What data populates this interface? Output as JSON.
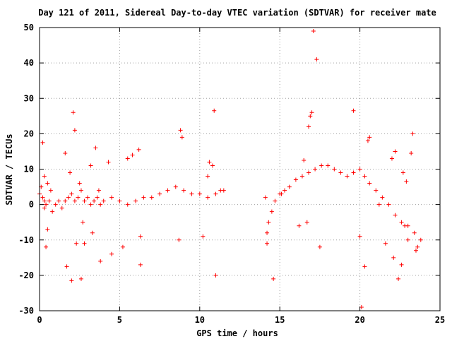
{
  "chart_data": {
    "type": "scatter",
    "title": "Day 121 of 2011, Sidereal Day-to-day VTEC variation (SDTVAR) for receiver mate",
    "xlabel": "GPS time / hours",
    "ylabel": "SDTVAR / TECUs",
    "xlim": [
      0,
      25
    ],
    "ylim": [
      -30,
      50
    ],
    "xticks": [
      "0",
      "5",
      "10",
      "15",
      "20",
      "25"
    ],
    "yticks": [
      "-30",
      "-20",
      "-10",
      "0",
      "10",
      "20",
      "30",
      "40",
      "50"
    ],
    "grid": true,
    "marker": "+",
    "color": "#ff0000",
    "series": [
      {
        "x": [
          0.0,
          0.1,
          0.2,
          0.3,
          0.4,
          0.6,
          0.8,
          1.0,
          1.2,
          1.4,
          1.6,
          1.8,
          2.0,
          2.2,
          2.4,
          2.6,
          2.8,
          3.0,
          3.2,
          3.4,
          3.6,
          3.8,
          4.0,
          4.5,
          5.0,
          5.5,
          6.0,
          6.5,
          7.0,
          7.5,
          8.0,
          8.5,
          9.0,
          9.5,
          10.0,
          10.5,
          11.0,
          11.5,
          14.2,
          14.3,
          14.5,
          14.7,
          15.0,
          15.3,
          15.6,
          16.0,
          16.4,
          16.8,
          17.2,
          17.6,
          18.0,
          18.4,
          18.8,
          19.2,
          19.6,
          20.0,
          20.3,
          20.6,
          21.0,
          21.4,
          21.8,
          22.2,
          22.6,
          23.0,
          23.4,
          23.8,
          0.2,
          0.3,
          0.4,
          0.3,
          0.5,
          0.7,
          1.6,
          1.7,
          1.9,
          2.0,
          2.1,
          2.2,
          2.3,
          2.5,
          2.6,
          2.7,
          3.2,
          3.3,
          3.5,
          3.7,
          3.8,
          4.3,
          4.5,
          5.2,
          5.5,
          6.2,
          6.3,
          6.3,
          8.8,
          8.9,
          10.2,
          10.5,
          10.8,
          10.9,
          11.0,
          11.3,
          14.1,
          14.2,
          14.6,
          15.1,
          16.2,
          16.5,
          16.7,
          16.8,
          16.9,
          17.0,
          17.1,
          17.3,
          17.5,
          19.6,
          20.0,
          20.1,
          20.3,
          20.5,
          20.6,
          21.2,
          21.6,
          22.0,
          22.1,
          22.2,
          22.4,
          22.6,
          22.7,
          22.9,
          23.0,
          23.2,
          23.3,
          23.5,
          0.5,
          2.8,
          5.8,
          8.7,
          10.6,
          22.8,
          23.6
        ],
        "y": [
          3,
          5,
          2,
          -1,
          0,
          1,
          -2,
          0,
          1,
          -1,
          1,
          2,
          3,
          1,
          2,
          4,
          1,
          2,
          0,
          1,
          2,
          0,
          1,
          2,
          1,
          0,
          1,
          2,
          2,
          3,
          4,
          5,
          4,
          3,
          3,
          2,
          3,
          4,
          -8,
          -5,
          -2,
          1,
          3,
          4,
          5,
          7,
          8,
          9,
          10,
          11,
          11,
          10,
          9,
          8,
          9,
          10,
          8,
          6,
          4,
          2,
          0,
          -3,
          -5,
          -6,
          -8,
          -10,
          17.5,
          8,
          -12,
          1,
          -7,
          4,
          14.5,
          -17.5,
          9,
          -21.5,
          26,
          21,
          -11,
          6,
          -21,
          -5,
          11,
          -8,
          16,
          4,
          -16,
          12,
          -14,
          -12,
          13,
          15.5,
          -17,
          -9,
          21,
          19,
          -9,
          8,
          11,
          26.5,
          -20,
          4,
          2,
          -11,
          -21,
          3,
          -6,
          12.5,
          -5,
          22,
          25,
          26,
          49,
          41,
          -12,
          26.5,
          -9,
          -29,
          -17.5,
          18,
          19,
          0,
          -11,
          13,
          -15,
          15,
          -21,
          -17,
          9,
          6.5,
          -10,
          14.5,
          20,
          -13,
          6,
          -11,
          14,
          -10,
          12,
          -6,
          -12
        ]
      }
    ]
  }
}
